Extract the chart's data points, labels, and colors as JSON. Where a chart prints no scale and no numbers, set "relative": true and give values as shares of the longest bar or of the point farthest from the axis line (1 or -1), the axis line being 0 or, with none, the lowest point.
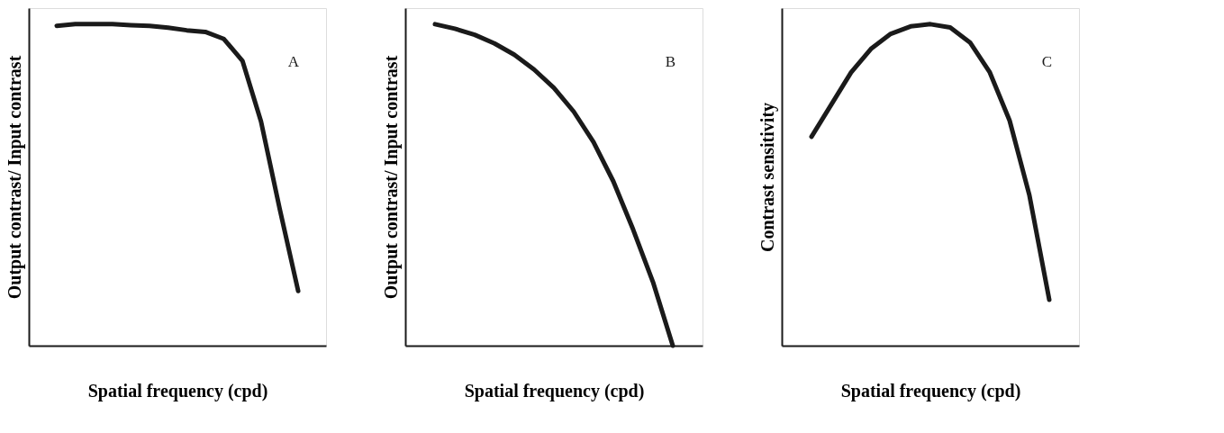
{
  "chart_data": [
    {
      "type": "line",
      "relative": true,
      "xlabel": "Spatial frequency (cpd)",
      "ylabel": "Output contrast/ Input contrast",
      "annotations": [
        "A"
      ],
      "color": "#1a1a1a",
      "categories": [
        null,
        null,
        null,
        null,
        null,
        null,
        null,
        null,
        null,
        null,
        null,
        null,
        null,
        null
      ],
      "values": [
        0.995,
        1,
        1,
        1,
        0.997,
        0.995,
        0.989,
        0.981,
        0.976,
        0.954,
        0.886,
        0.697,
        0.427,
        0.17
      ],
      "grid": false,
      "marker": "none",
      "line_style": "solid",
      "tick_labels": false
    },
    {
      "type": "line",
      "relative": true,
      "xlabel": "Spatial frequency (cpd)",
      "ylabel": "Output contrast/ Input contrast",
      "annotations": [
        "B"
      ],
      "color": "#1a1a1a",
      "categories": [
        null,
        null,
        null,
        null,
        null,
        null,
        null,
        null,
        null,
        null,
        null,
        null,
        null
      ],
      "values": [
        1,
        0.986,
        0.967,
        0.94,
        0.905,
        0.859,
        0.802,
        0.728,
        0.633,
        0.511,
        0.361,
        0.198,
        0
      ],
      "grid": false,
      "marker": "none",
      "line_style": "solid",
      "tick_labels": false
    },
    {
      "type": "line",
      "relative": true,
      "xlabel": "Spatial frequency (cpd)",
      "ylabel": "Contrast sensitivity",
      "annotations": [
        "C"
      ],
      "color": "#1a1a1a",
      "categories": [
        null,
        null,
        null,
        null,
        null,
        null,
        null,
        null,
        null,
        null,
        null,
        null,
        null
      ],
      "values": [
        0.65,
        0.75,
        0.85,
        0.923,
        0.97,
        0.993,
        1,
        0.99,
        0.943,
        0.85,
        0.7,
        0.467,
        0.143
      ],
      "grid": false,
      "marker": "none",
      "line_style": "solid",
      "tick_labels": false
    }
  ]
}
